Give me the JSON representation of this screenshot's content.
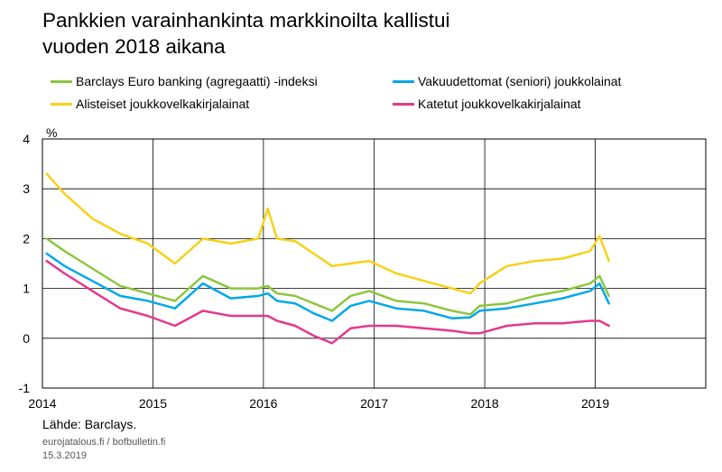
{
  "title": {
    "line1": "Pankkien varainhankinta markkinoilta kallistui",
    "line2": "vuoden 2018 aikana"
  },
  "unit_label": "%",
  "source": "Lähde: Barclays.",
  "credit_site": "eurojatalous.fi / bofbulletin.fi",
  "credit_date": "15.3.2019",
  "chart_data": {
    "type": "line",
    "title": "Pankkien varainhankinta markkinoilta kallistui vuoden 2018 aikana",
    "ylabel": "%",
    "ylim": [
      -1,
      4
    ],
    "yticks": [
      "-1",
      "0",
      "1",
      "2",
      "3",
      "4"
    ],
    "xticks": [
      "2014",
      "2015",
      "2016",
      "2017",
      "2018",
      "2019"
    ],
    "xlim": [
      "2014-01-01",
      "2020-01-01"
    ],
    "grid": true,
    "legend_position": "top",
    "x": [
      "2014-01",
      "2014-03",
      "2014-06",
      "2014-09",
      "2014-12",
      "2015-03",
      "2015-06",
      "2015-09",
      "2015-12",
      "2016-01",
      "2016-02",
      "2016-04",
      "2016-06",
      "2016-08",
      "2016-10",
      "2016-12",
      "2017-03",
      "2017-06",
      "2017-09",
      "2017-11",
      "2017-12",
      "2018-03",
      "2018-06",
      "2018-09",
      "2018-12",
      "2019-01",
      "2019-02"
    ],
    "series": [
      {
        "name": "Barclays Euro banking (agregaatti) -indeksi",
        "color": "#8dc63f",
        "values": [
          2.0,
          1.75,
          1.4,
          1.05,
          0.9,
          0.75,
          1.25,
          1.0,
          1.0,
          1.05,
          0.9,
          0.85,
          0.7,
          0.55,
          0.85,
          0.95,
          0.75,
          0.7,
          0.55,
          0.48,
          0.65,
          0.7,
          0.85,
          0.95,
          1.1,
          1.25,
          0.85
        ]
      },
      {
        "name": "Vakuudettomat (seniori) joukkolainat",
        "color": "#00a8e8",
        "values": [
          1.7,
          1.45,
          1.15,
          0.85,
          0.75,
          0.6,
          1.1,
          0.8,
          0.85,
          0.9,
          0.75,
          0.7,
          0.5,
          0.35,
          0.65,
          0.75,
          0.6,
          0.55,
          0.4,
          0.42,
          0.55,
          0.6,
          0.7,
          0.8,
          0.95,
          1.1,
          0.7
        ]
      },
      {
        "name": "Alisteiset joukkovelkakirjalainat",
        "color": "#f7d117",
        "values": [
          3.3,
          2.9,
          2.4,
          2.1,
          1.9,
          1.5,
          2.0,
          1.9,
          2.0,
          2.6,
          2.0,
          1.95,
          1.7,
          1.45,
          1.5,
          1.55,
          1.3,
          1.15,
          1.0,
          0.9,
          1.1,
          1.45,
          1.55,
          1.6,
          1.75,
          2.05,
          1.55
        ]
      },
      {
        "name": "Katetut joukkovelkakirjalainat",
        "color": "#e2398e",
        "values": [
          1.55,
          1.3,
          0.95,
          0.6,
          0.45,
          0.25,
          0.55,
          0.45,
          0.45,
          0.45,
          0.35,
          0.25,
          0.05,
          -0.1,
          0.2,
          0.25,
          0.25,
          0.2,
          0.15,
          0.1,
          0.1,
          0.25,
          0.3,
          0.3,
          0.35,
          0.35,
          0.25
        ]
      }
    ]
  }
}
